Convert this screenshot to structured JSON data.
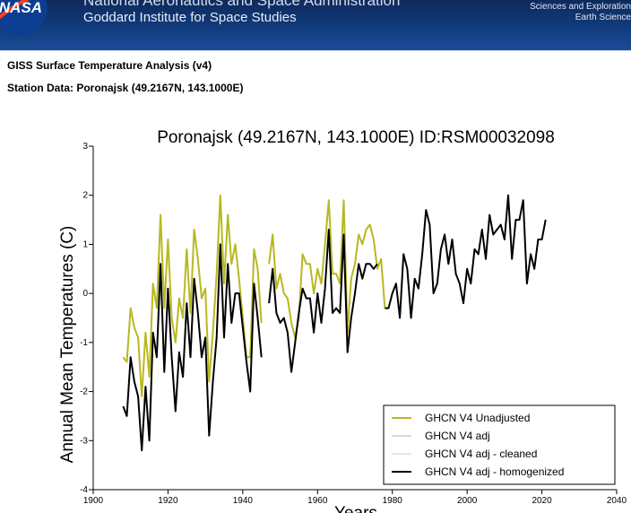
{
  "header": {
    "agency": "National Aeronautics and Space Administration",
    "institute": "Goddard Institute for Space Studies",
    "side_link_1": "Sciences and Exploration",
    "side_link_2": "Earth Science",
    "logo_text": "NASA"
  },
  "page": {
    "title": "GISS Surface Temperature Analysis (v4)",
    "subtitle": "Station Data: Poronajsk (49.2167N, 143.1000E)"
  },
  "chart_data": {
    "type": "line",
    "title": "Poronajsk (49.2167N, 143.1000E) ID:RSM00032098",
    "xlabel": "Years",
    "ylabel": "Annual Mean Temperatures (C)",
    "xlim": [
      1900,
      2040
    ],
    "ylim": [
      -4,
      3
    ],
    "xticks": [
      1900,
      1920,
      1940,
      1960,
      1980,
      2000,
      2020,
      2040
    ],
    "yticks": [
      -4,
      -3,
      -2,
      -1,
      0,
      1,
      2,
      3
    ],
    "legend": [
      {
        "label": "GHCN V4 Unadjusted",
        "color": "#b8b820"
      },
      {
        "label": "GHCN V4 adj",
        "color": "#d7d7d7"
      },
      {
        "label": "GHCN V4 adj - cleaned",
        "color": "#e7e7df"
      },
      {
        "label": "GHCN V4 adj - homogenized",
        "color": "#000000"
      }
    ],
    "series": [
      {
        "name": "GHCN V4 Unadjusted",
        "color": "#b8b820",
        "segments": [
          [
            [
              1908,
              -1.3
            ],
            [
              1909,
              -1.4
            ],
            [
              1910,
              -0.3
            ],
            [
              1911,
              -0.7
            ],
            [
              1912,
              -0.9
            ],
            [
              1913,
              -2.1
            ],
            [
              1914,
              -0.8
            ],
            [
              1915,
              -1.7
            ],
            [
              1916,
              0.2
            ],
            [
              1917,
              -0.3
            ],
            [
              1918,
              1.6
            ],
            [
              1919,
              -0.3
            ],
            [
              1920,
              1.1
            ],
            [
              1921,
              -0.5
            ],
            [
              1922,
              -1.0
            ],
            [
              1923,
              -0.1
            ],
            [
              1924,
              -0.5
            ],
            [
              1925,
              0.9
            ],
            [
              1926,
              -0.4
            ],
            [
              1927,
              1.3
            ],
            [
              1928,
              0.7
            ],
            [
              1929,
              -0.1
            ],
            [
              1930,
              0.1
            ],
            [
              1931,
              -1.8
            ],
            [
              1932,
              -0.8
            ],
            [
              1933,
              0.4
            ],
            [
              1934,
              2.0
            ],
            [
              1935,
              0.2
            ],
            [
              1936,
              1.6
            ],
            [
              1937,
              0.6
            ],
            [
              1938,
              1.0
            ],
            [
              1939,
              0.3
            ],
            [
              1940,
              -0.5
            ],
            [
              1941,
              -1.3
            ],
            [
              1942,
              -1.3
            ],
            [
              1943,
              0.9
            ],
            [
              1944,
              0.5
            ],
            [
              1945,
              -0.6
            ]
          ],
          [
            [
              1947,
              0.6
            ],
            [
              1948,
              1.2
            ],
            [
              1949,
              0.1
            ],
            [
              1950,
              0.4
            ],
            [
              1951,
              0.0
            ],
            [
              1952,
              -0.1
            ],
            [
              1953,
              -0.6
            ],
            [
              1954,
              -0.9
            ],
            [
              1955,
              -0.5
            ],
            [
              1956,
              0.8
            ],
            [
              1957,
              0.6
            ],
            [
              1958,
              0.6
            ],
            [
              1959,
              0.0
            ],
            [
              1960,
              0.5
            ],
            [
              1961,
              0.2
            ],
            [
              1962,
              1.0
            ],
            [
              1963,
              1.9
            ],
            [
              1964,
              0.4
            ],
            [
              1965,
              0.4
            ],
            [
              1966,
              0.2
            ],
            [
              1967,
              1.9
            ],
            [
              1968,
              -0.8
            ],
            [
              1969,
              0.3
            ],
            [
              1970,
              0.6
            ],
            [
              1971,
              1.2
            ],
            [
              1972,
              1.0
            ],
            [
              1973,
              1.3
            ],
            [
              1974,
              1.4
            ],
            [
              1975,
              1.1
            ],
            [
              1976,
              0.5
            ],
            [
              1977,
              0.7
            ],
            [
              1978,
              -0.3
            ]
          ]
        ]
      },
      {
        "name": "GHCN V4 adj - homogenized",
        "color": "#000000",
        "segments": [
          [
            [
              1908,
              -2.3
            ],
            [
              1909,
              -2.5
            ],
            [
              1910,
              -1.3
            ],
            [
              1911,
              -1.8
            ],
            [
              1912,
              -2.1
            ],
            [
              1913,
              -3.2
            ],
            [
              1914,
              -1.9
            ],
            [
              1915,
              -3.0
            ],
            [
              1916,
              -0.8
            ],
            [
              1917,
              -1.3
            ],
            [
              1918,
              0.6
            ],
            [
              1919,
              -1.6
            ],
            [
              1920,
              0.1
            ],
            [
              1921,
              -1.3
            ],
            [
              1922,
              -2.4
            ],
            [
              1923,
              -1.2
            ],
            [
              1924,
              -1.7
            ],
            [
              1925,
              -0.2
            ],
            [
              1926,
              -1.3
            ],
            [
              1927,
              0.3
            ],
            [
              1928,
              -0.4
            ],
            [
              1929,
              -1.3
            ],
            [
              1930,
              -0.9
            ],
            [
              1931,
              -2.9
            ],
            [
              1932,
              -1.8
            ],
            [
              1933,
              -0.9
            ],
            [
              1934,
              1.0
            ],
            [
              1935,
              -0.9
            ],
            [
              1936,
              0.6
            ],
            [
              1937,
              -0.6
            ],
            [
              1938,
              0.0
            ],
            [
              1939,
              0.0
            ],
            [
              1940,
              -0.7
            ],
            [
              1941,
              -1.4
            ],
            [
              1942,
              -2.0
            ],
            [
              1943,
              0.2
            ],
            [
              1944,
              -0.5
            ],
            [
              1945,
              -1.3
            ]
          ],
          [
            [
              1947,
              -0.2
            ],
            [
              1948,
              0.5
            ],
            [
              1949,
              -0.4
            ],
            [
              1950,
              -0.6
            ],
            [
              1951,
              -0.5
            ],
            [
              1952,
              -0.8
            ],
            [
              1953,
              -1.6
            ],
            [
              1954,
              -1.0
            ],
            [
              1955,
              -0.4
            ],
            [
              1956,
              0.1
            ],
            [
              1957,
              -0.1
            ],
            [
              1958,
              -0.1
            ],
            [
              1959,
              -0.8
            ],
            [
              1960,
              0.0
            ],
            [
              1961,
              -0.6
            ],
            [
              1962,
              0.1
            ],
            [
              1963,
              1.3
            ],
            [
              1964,
              -0.4
            ],
            [
              1965,
              -0.3
            ],
            [
              1966,
              -0.4
            ],
            [
              1967,
              1.2
            ],
            [
              1968,
              -1.2
            ],
            [
              1969,
              -0.5
            ],
            [
              1970,
              0.0
            ],
            [
              1971,
              0.6
            ],
            [
              1972,
              0.3
            ],
            [
              1973,
              0.6
            ],
            [
              1974,
              0.6
            ],
            [
              1975,
              0.5
            ],
            [
              1976,
              0.6
            ]
          ],
          [
            [
              1978,
              -0.3
            ],
            [
              1979,
              -0.3
            ],
            [
              1980,
              0.0
            ],
            [
              1981,
              0.2
            ],
            [
              1982,
              -0.5
            ],
            [
              1983,
              0.8
            ],
            [
              1984,
              0.5
            ],
            [
              1985,
              -0.5
            ],
            [
              1986,
              0.3
            ],
            [
              1987,
              0.1
            ],
            [
              1988,
              0.8
            ],
            [
              1989,
              1.7
            ],
            [
              1990,
              1.4
            ],
            [
              1991,
              0.0
            ],
            [
              1992,
              0.2
            ],
            [
              1993,
              0.9
            ],
            [
              1994,
              1.2
            ],
            [
              1995,
              0.6
            ],
            [
              1996,
              1.1
            ],
            [
              1997,
              0.4
            ],
            [
              1998,
              0.2
            ],
            [
              1999,
              -0.2
            ],
            [
              2000,
              0.5
            ],
            [
              2001,
              0.2
            ],
            [
              2002,
              0.9
            ],
            [
              2003,
              0.8
            ],
            [
              2004,
              1.3
            ],
            [
              2005,
              0.7
            ],
            [
              2006,
              1.6
            ],
            [
              2007,
              1.2
            ],
            [
              2008,
              1.3
            ],
            [
              2009,
              1.4
            ],
            [
              2010,
              1.1
            ],
            [
              2011,
              2.0
            ],
            [
              2012,
              0.7
            ],
            [
              2013,
              1.5
            ],
            [
              2014,
              1.5
            ],
            [
              2015,
              1.9
            ],
            [
              2016,
              0.2
            ],
            [
              2017,
              0.8
            ],
            [
              2018,
              0.5
            ],
            [
              2019,
              1.1
            ],
            [
              2020,
              1.1
            ],
            [
              2021,
              1.5
            ]
          ]
        ]
      }
    ]
  }
}
